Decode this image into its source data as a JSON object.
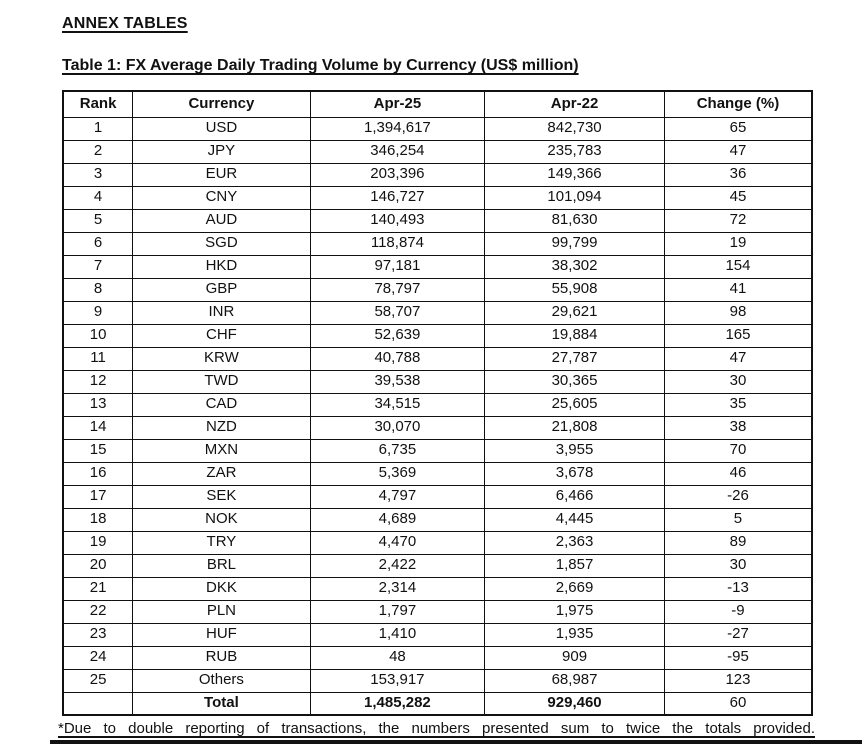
{
  "page": {
    "heading": "ANNEX TABLES",
    "table_title": "Table 1: FX Average Daily Trading Volume by Currency (US$ million)",
    "footnote": "*Due to double reporting of transactions, the numbers presented sum to twice the totals provided."
  },
  "table": {
    "columns": [
      "Rank",
      "Currency",
      "Apr-25",
      "Apr-22",
      "Change (%)"
    ],
    "column_keys": [
      "rank",
      "currency",
      "apr25",
      "apr22",
      "change"
    ],
    "rows": [
      [
        "1",
        "USD",
        "1,394,617",
        "842,730",
        "65"
      ],
      [
        "2",
        "JPY",
        "346,254",
        "235,783",
        "47"
      ],
      [
        "3",
        "EUR",
        "203,396",
        "149,366",
        "36"
      ],
      [
        "4",
        "CNY",
        "146,727",
        "101,094",
        "45"
      ],
      [
        "5",
        "AUD",
        "140,493",
        "81,630",
        "72"
      ],
      [
        "6",
        "SGD",
        "118,874",
        "99,799",
        "19"
      ],
      [
        "7",
        "HKD",
        "97,181",
        "38,302",
        "154"
      ],
      [
        "8",
        "GBP",
        "78,797",
        "55,908",
        "41"
      ],
      [
        "9",
        "INR",
        "58,707",
        "29,621",
        "98"
      ],
      [
        "10",
        "CHF",
        "52,639",
        "19,884",
        "165"
      ],
      [
        "11",
        "KRW",
        "40,788",
        "27,787",
        "47"
      ],
      [
        "12",
        "TWD",
        "39,538",
        "30,365",
        "30"
      ],
      [
        "13",
        "CAD",
        "34,515",
        "25,605",
        "35"
      ],
      [
        "14",
        "NZD",
        "30,070",
        "21,808",
        "38"
      ],
      [
        "15",
        "MXN",
        "6,735",
        "3,955",
        "70"
      ],
      [
        "16",
        "ZAR",
        "5,369",
        "3,678",
        "46"
      ],
      [
        "17",
        "SEK",
        "4,797",
        "6,466",
        "-26"
      ],
      [
        "18",
        "NOK",
        "4,689",
        "4,445",
        "5"
      ],
      [
        "19",
        "TRY",
        "4,470",
        "2,363",
        "89"
      ],
      [
        "20",
        "BRL",
        "2,422",
        "1,857",
        "30"
      ],
      [
        "21",
        "DKK",
        "2,314",
        "2,669",
        "-13"
      ],
      [
        "22",
        "PLN",
        "1,797",
        "1,975",
        "-9"
      ],
      [
        "23",
        "HUF",
        "1,410",
        "1,935",
        "-27"
      ],
      [
        "24",
        "RUB",
        "48",
        "909",
        "-95"
      ],
      [
        "25",
        "Others",
        "153,917",
        "68,987",
        "123"
      ]
    ],
    "total_row": [
      "",
      "Total",
      "1,485,282",
      "929,460",
      "60"
    ]
  },
  "colors": {
    "text": "#111111",
    "background": "#ffffff",
    "border": "#111111"
  }
}
